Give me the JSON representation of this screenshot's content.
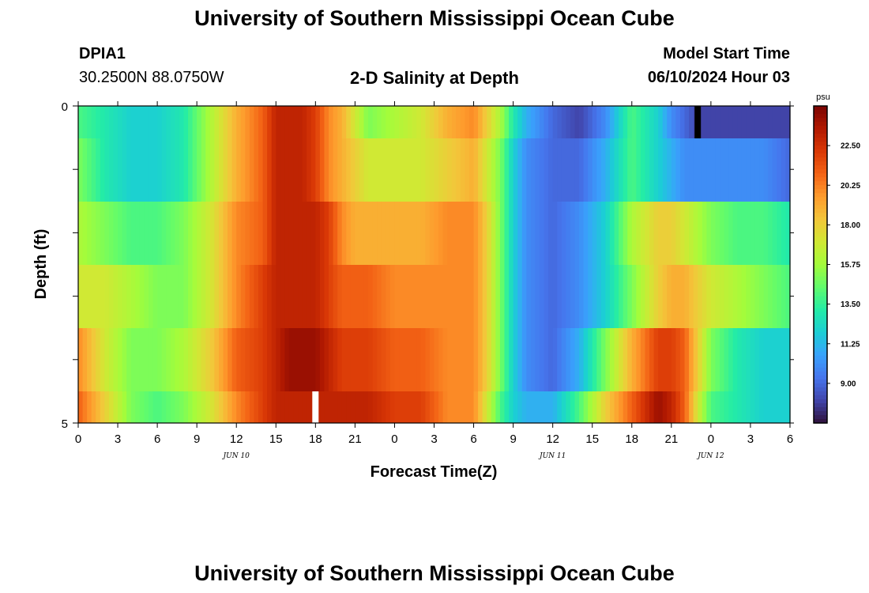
{
  "header": {
    "title": "University of Southern Mississippi Ocean Cube",
    "station_id": "DPIA1",
    "coordinates": "30.2500N  88.0750W",
    "subtitle": "2-D Salinity at Depth",
    "model_start_label": "Model Start Time",
    "model_start_value": "06/10/2024 Hour 03"
  },
  "footer": {
    "title": "University of Southern Mississippi Ocean Cube"
  },
  "chart_data": {
    "type": "heatmap",
    "title": "2-D Salinity at Depth",
    "xlabel": "Forecast Time(Z)",
    "ylabel": "Depth (ft)",
    "x_tick_labels": [
      "0",
      "3",
      "6",
      "9",
      "12",
      "15",
      "18",
      "21",
      "0",
      "3",
      "6",
      "9",
      "12",
      "15",
      "18",
      "21",
      "0",
      "3",
      "6"
    ],
    "x_date_labels": [
      "JUN 10",
      "JUN 11",
      "JUN 12"
    ],
    "y_tick_labels": [
      "0",
      "5"
    ],
    "ylim": [
      0,
      5
    ],
    "xlim_hours": [
      0,
      54
    ],
    "colorbar": {
      "unit": "psu",
      "range": [
        6.75,
        24.75
      ],
      "tick_labels": [
        "9.00",
        "11.25",
        "13.50",
        "15.75",
        "18.00",
        "20.25",
        "22.50"
      ],
      "colormap": [
        "#30123b",
        "#4145ab",
        "#4675ed",
        "#39a2fc",
        "#1bcfd4",
        "#24eca6",
        "#61fc6c",
        "#a4fc3b",
        "#d1e834",
        "#f3c63a",
        "#fe9b2d",
        "#f36315",
        "#d93806",
        "#b11901",
        "#7a0403"
      ]
    },
    "rows_depth_ft": [
      0.25,
      1,
      2,
      3,
      4,
      5
    ],
    "hour_knots": [
      0,
      2,
      4,
      6,
      8,
      10,
      12,
      14,
      15,
      16,
      17,
      18,
      19,
      20,
      21,
      22,
      24,
      26,
      28,
      30,
      31,
      32,
      33,
      34,
      36,
      38,
      40,
      42,
      44,
      45,
      46,
      47,
      48,
      50,
      52,
      54
    ],
    "salinity_psu": [
      [
        14,
        13,
        12,
        12,
        13,
        16,
        19,
        21,
        23,
        23,
        23,
        22,
        20,
        19,
        17,
        15,
        16,
        17,
        19,
        20,
        18,
        16,
        13,
        11,
        9,
        8,
        10,
        14,
        12,
        10,
        9,
        8,
        8,
        8,
        8,
        8
      ],
      [
        15,
        13,
        12,
        12,
        13,
        16,
        19,
        21,
        23,
        23,
        23,
        22,
        20,
        19,
        18,
        17,
        17,
        17,
        18,
        19,
        17,
        15,
        12,
        10,
        9,
        9,
        11,
        14,
        12,
        11,
        10,
        10,
        10,
        10,
        10,
        9
      ],
      [
        16,
        15,
        14,
        14,
        15,
        17,
        20,
        21,
        23,
        23,
        23,
        23,
        22,
        20,
        19,
        19,
        19,
        19,
        20,
        20,
        18,
        15,
        12,
        10,
        9,
        10,
        12,
        16,
        18,
        18,
        17,
        16,
        15,
        14,
        14,
        13
      ],
      [
        17,
        17,
        16,
        15,
        15,
        17,
        20,
        22,
        23,
        23,
        23,
        23,
        22,
        21,
        21,
        21,
        20,
        20,
        20,
        20,
        18,
        15,
        12,
        10,
        9,
        10,
        12,
        15,
        18,
        19,
        19,
        18,
        17,
        16,
        15,
        14
      ],
      [
        20,
        17,
        15,
        15,
        16,
        18,
        21,
        22,
        23,
        24,
        24,
        24,
        23,
        22,
        22,
        22,
        21,
        21,
        20,
        20,
        18,
        15,
        12,
        10,
        9,
        11,
        15,
        19,
        22,
        22,
        21,
        18,
        15,
        13,
        12,
        12
      ],
      [
        21,
        18,
        15,
        14,
        15,
        17,
        20,
        22,
        23,
        23,
        23,
        23,
        23,
        23,
        23,
        23,
        22,
        22,
        20,
        20,
        17,
        14,
        12,
        11,
        11,
        14,
        18,
        21,
        24,
        23,
        21,
        17,
        14,
        13,
        12,
        12
      ]
    ],
    "missing_data_markers": [
      {
        "hour": 18,
        "row": 5,
        "color": "#ffffff"
      },
      {
        "hour": 47,
        "row": 0,
        "color": "#000000"
      }
    ]
  }
}
